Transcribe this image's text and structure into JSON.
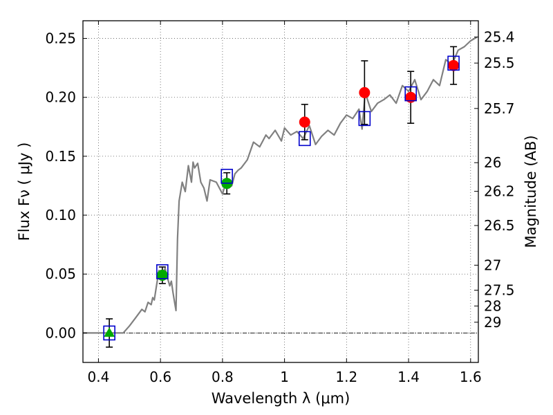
{
  "chart_data": {
    "type": "scatter",
    "title": "",
    "xlabel": "Wavelength  λ (μm)",
    "ylabel": "Flux  Fν  ( μJy )",
    "ylabel_right": "Magnitude (AB)",
    "xlim": [
      0.35,
      1.625
    ],
    "ylim": [
      -0.025,
      0.265
    ],
    "grid": true,
    "legend": "none",
    "x_ticks": [
      0.4,
      0.6,
      0.8,
      1.0,
      1.2,
      1.4,
      1.6
    ],
    "x_tick_labels": [
      "0.4",
      "0.6",
      "0.8",
      "1",
      "1.2",
      "1.4",
      "1.6"
    ],
    "y_ticks": [
      0.0,
      0.05,
      0.1,
      0.15,
      0.2,
      0.25
    ],
    "y_tick_labels": [
      "0.00",
      "0.05",
      "0.10",
      "0.15",
      "0.20",
      "0.25"
    ],
    "mag_ticks": [
      25.4,
      25.5,
      25.7,
      26,
      26.2,
      26.5,
      27,
      27.5,
      28,
      29
    ],
    "mag_tick_labels": [
      "25.4",
      "25.5",
      "25.7",
      "26",
      "26.2",
      "26.5",
      "27",
      "27.5",
      "28",
      "29"
    ],
    "zero_line": 0.0,
    "colors": {
      "template": "#808080",
      "model_box": "#0000cc",
      "green": "#00aa00",
      "red": "#ff0000",
      "errorbar": "#000000"
    },
    "template_spectrum": {
      "x": [
        0.35,
        0.48,
        0.5,
        0.52,
        0.54,
        0.55,
        0.56,
        0.57,
        0.575,
        0.58,
        0.59,
        0.595,
        0.6,
        0.61,
        0.615,
        0.62,
        0.63,
        0.635,
        0.64,
        0.645,
        0.65,
        0.655,
        0.66,
        0.67,
        0.68,
        0.69,
        0.7,
        0.705,
        0.71,
        0.72,
        0.73,
        0.74,
        0.75,
        0.76,
        0.78,
        0.8,
        0.81,
        0.82,
        0.83,
        0.84,
        0.85,
        0.86,
        0.88,
        0.9,
        0.92,
        0.94,
        0.95,
        0.97,
        0.99,
        1.0,
        1.02,
        1.04,
        1.06,
        1.08,
        1.1,
        1.12,
        1.14,
        1.16,
        1.18,
        1.2,
        1.22,
        1.24,
        1.25,
        1.26,
        1.28,
        1.3,
        1.32,
        1.34,
        1.36,
        1.38,
        1.4,
        1.42,
        1.44,
        1.46,
        1.48,
        1.5,
        1.52,
        1.54,
        1.56,
        1.58,
        1.6,
        1.62
      ],
      "y": [
        0.0,
        0.0,
        0.006,
        0.013,
        0.02,
        0.018,
        0.026,
        0.024,
        0.03,
        0.028,
        0.045,
        0.053,
        0.049,
        0.052,
        0.055,
        0.049,
        0.04,
        0.044,
        0.035,
        0.027,
        0.019,
        0.08,
        0.112,
        0.128,
        0.12,
        0.142,
        0.128,
        0.145,
        0.14,
        0.144,
        0.128,
        0.123,
        0.112,
        0.13,
        0.128,
        0.118,
        0.127,
        0.123,
        0.125,
        0.135,
        0.138,
        0.14,
        0.147,
        0.162,
        0.158,
        0.168,
        0.165,
        0.172,
        0.163,
        0.174,
        0.168,
        0.171,
        0.165,
        0.176,
        0.16,
        0.167,
        0.172,
        0.168,
        0.178,
        0.185,
        0.182,
        0.19,
        0.173,
        0.204,
        0.188,
        0.195,
        0.198,
        0.202,
        0.195,
        0.21,
        0.205,
        0.215,
        0.198,
        0.205,
        0.215,
        0.21,
        0.232,
        0.228,
        0.24,
        0.243,
        0.248,
        0.251
      ]
    },
    "model_boxes": {
      "x": [
        0.435,
        0.606,
        0.814,
        1.065,
        1.258,
        1.407,
        1.545
      ],
      "y": [
        0.0,
        0.052,
        0.133,
        0.165,
        0.182,
        0.203,
        0.229
      ]
    },
    "observed": [
      {
        "x": 0.435,
        "y": 0.0,
        "yerr": 0.012,
        "marker": "triangle",
        "color": "green"
      },
      {
        "x": 0.606,
        "y": 0.049,
        "yerr": 0.007,
        "marker": "circle",
        "color": "green"
      },
      {
        "x": 0.814,
        "y": 0.127,
        "yerr": 0.009,
        "marker": "circle",
        "color": "green"
      },
      {
        "x": 1.065,
        "y": 0.179,
        "yerr": 0.015,
        "marker": "circle",
        "color": "red"
      },
      {
        "x": 1.258,
        "y": 0.204,
        "yerr": 0.027,
        "marker": "circle",
        "color": "red"
      },
      {
        "x": 1.407,
        "y": 0.2,
        "yerr": 0.022,
        "marker": "circle",
        "color": "red"
      },
      {
        "x": 1.545,
        "y": 0.227,
        "yerr": 0.016,
        "marker": "circle",
        "color": "red"
      }
    ]
  }
}
